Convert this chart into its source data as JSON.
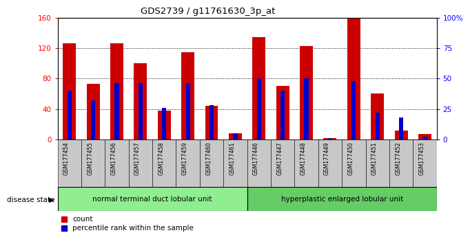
{
  "title": "GDS2739 / g11761630_3p_at",
  "samples": [
    "GSM177454",
    "GSM177455",
    "GSM177456",
    "GSM177457",
    "GSM177458",
    "GSM177459",
    "GSM177460",
    "GSM177461",
    "GSM177446",
    "GSM177447",
    "GSM177448",
    "GSM177449",
    "GSM177450",
    "GSM177451",
    "GSM177452",
    "GSM177453"
  ],
  "counts": [
    126,
    73,
    126,
    100,
    38,
    115,
    44,
    8,
    135,
    70,
    123,
    2,
    160,
    60,
    12,
    7
  ],
  "percentiles": [
    40,
    32,
    46,
    46,
    26,
    46,
    28,
    5,
    50,
    40,
    50,
    1,
    48,
    22,
    18,
    2
  ],
  "group1_count": 8,
  "group2_count": 8,
  "group1_label": "normal terminal duct lobular unit",
  "group2_label": "hyperplastic enlarged lobular unit",
  "disease_state_label": "disease state",
  "count_label": "count",
  "percentile_label": "percentile rank within the sample",
  "ylim_left": [
    0,
    160
  ],
  "ylim_right": [
    0,
    100
  ],
  "yticks_left": [
    0,
    40,
    80,
    120,
    160
  ],
  "yticks_right": [
    0,
    25,
    50,
    75,
    100
  ],
  "ytick_labels_right": [
    "0",
    "25",
    "50",
    "75",
    "100%"
  ],
  "bar_color_red": "#cc0000",
  "bar_color_blue": "#0000cc",
  "group1_bg": "#90ee90",
  "group2_bg": "#66cc66",
  "xticklabel_bg": "#c8c8c8",
  "bar_width": 0.55,
  "blue_bar_width": 0.18
}
